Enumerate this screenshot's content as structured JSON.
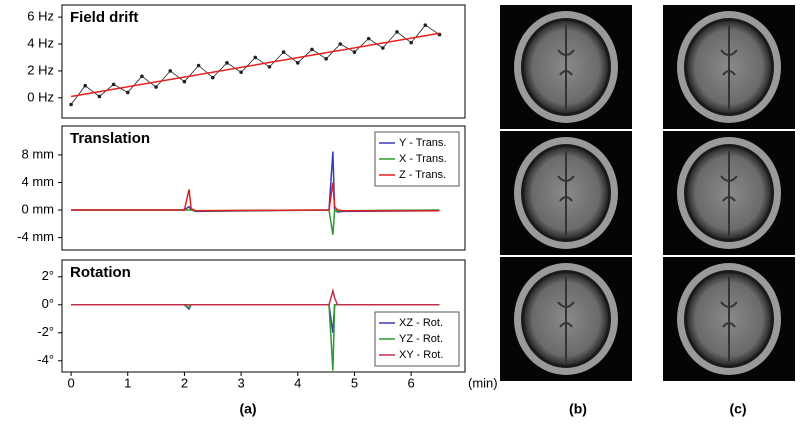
{
  "chart_data": [
    {
      "type": "line",
      "title": "Field drift",
      "xlim": [
        -0.16,
        6.95
      ],
      "ylim": [
        -1.5,
        6.9
      ],
      "yticks": [
        {
          "value": 0,
          "label": "0 Hz"
        },
        {
          "value": 2,
          "label": "2 Hz"
        },
        {
          "value": 4,
          "label": "4 Hz"
        },
        {
          "value": 6,
          "label": "6 Hz"
        }
      ],
      "series": [
        {
          "color": "#222222",
          "markers": true,
          "x": [
            0,
            0.25,
            0.5,
            0.75,
            1,
            1.25,
            1.5,
            1.75,
            2,
            2.25,
            2.5,
            2.75,
            3,
            3.25,
            3.5,
            3.75,
            4,
            4.25,
            4.5,
            4.75,
            5,
            5.25,
            5.5,
            5.75,
            6,
            6.25,
            6.5
          ],
          "values": [
            -0.5,
            0.9,
            0.1,
            1.0,
            0.4,
            1.6,
            0.8,
            2.0,
            1.2,
            2.4,
            1.5,
            2.6,
            1.9,
            3.0,
            2.3,
            3.4,
            2.6,
            3.6,
            2.9,
            4.0,
            3.4,
            4.4,
            3.7,
            4.9,
            4.1,
            5.4,
            4.7
          ]
        },
        {
          "color": "#e8201a",
          "x": [
            0,
            6.5
          ],
          "values": [
            0.1,
            4.8
          ]
        }
      ]
    },
    {
      "type": "line",
      "title": "Translation",
      "xlim": [
        -0.16,
        6.95
      ],
      "ylim": [
        -5.8,
        12.2
      ],
      "legend": "upper right",
      "yticks": [
        {
          "value": -4,
          "label": "-4 mm"
        },
        {
          "value": 0,
          "label": "0 mm"
        },
        {
          "value": 4,
          "label": "4 mm"
        },
        {
          "value": 8,
          "label": "8 mm"
        }
      ],
      "x": [
        0,
        2.0,
        2.08,
        2.12,
        2.2,
        4.55,
        4.62,
        4.65,
        4.7,
        4.8,
        6.5
      ],
      "series": [
        {
          "name": "Y - Trans.",
          "color": "#3b3bb5",
          "values": [
            0,
            0,
            0.5,
            0,
            -0.2,
            0,
            8.5,
            0,
            -0.3,
            -0.2,
            -0.1
          ]
        },
        {
          "name": "X - Trans.",
          "color": "#2e9a2e",
          "values": [
            0,
            0,
            0,
            0,
            -0.1,
            0,
            -3.6,
            0,
            -0.2,
            -0.1,
            0
          ]
        },
        {
          "name": "Z - Trans.",
          "color": "#e02020",
          "values": [
            0,
            0,
            3.0,
            0.2,
            -0.1,
            0,
            4.0,
            0.5,
            0,
            -0.1,
            -0.1
          ]
        }
      ]
    },
    {
      "type": "line",
      "title": "Rotation",
      "xlim": [
        -0.16,
        6.95
      ],
      "ylim": [
        -4.8,
        3.2
      ],
      "legend": "lower right",
      "x_label": "(min)",
      "xticks": [
        0,
        1,
        2,
        3,
        4,
        5,
        6
      ],
      "yticks": [
        {
          "value": -4,
          "label": "-4°"
        },
        {
          "value": -2,
          "label": "-2°"
        },
        {
          "value": 0,
          "label": "0°"
        },
        {
          "value": 2,
          "label": "2°"
        }
      ],
      "x": [
        0,
        2.0,
        2.08,
        2.12,
        2.2,
        4.55,
        4.62,
        4.65,
        4.7,
        4.8,
        6.5
      ],
      "series": [
        {
          "name": "XZ - Rot.",
          "color": "#3b3bb5",
          "values": [
            0,
            0,
            -0.3,
            0,
            0,
            0,
            -2.0,
            0,
            0,
            0,
            0
          ]
        },
        {
          "name": "YZ - Rot.",
          "color": "#2e9a2e",
          "values": [
            0,
            0,
            -0.2,
            0,
            0,
            0,
            -4.7,
            0,
            0,
            0,
            0
          ]
        },
        {
          "name": "XY - Rot.",
          "color": "#c0304a",
          "values": [
            0,
            0,
            0,
            0,
            0,
            0,
            1.0,
            0.5,
            0,
            0,
            0
          ]
        }
      ]
    }
  ],
  "panel_labels": [
    "(a)",
    "(b)",
    "(c)"
  ]
}
